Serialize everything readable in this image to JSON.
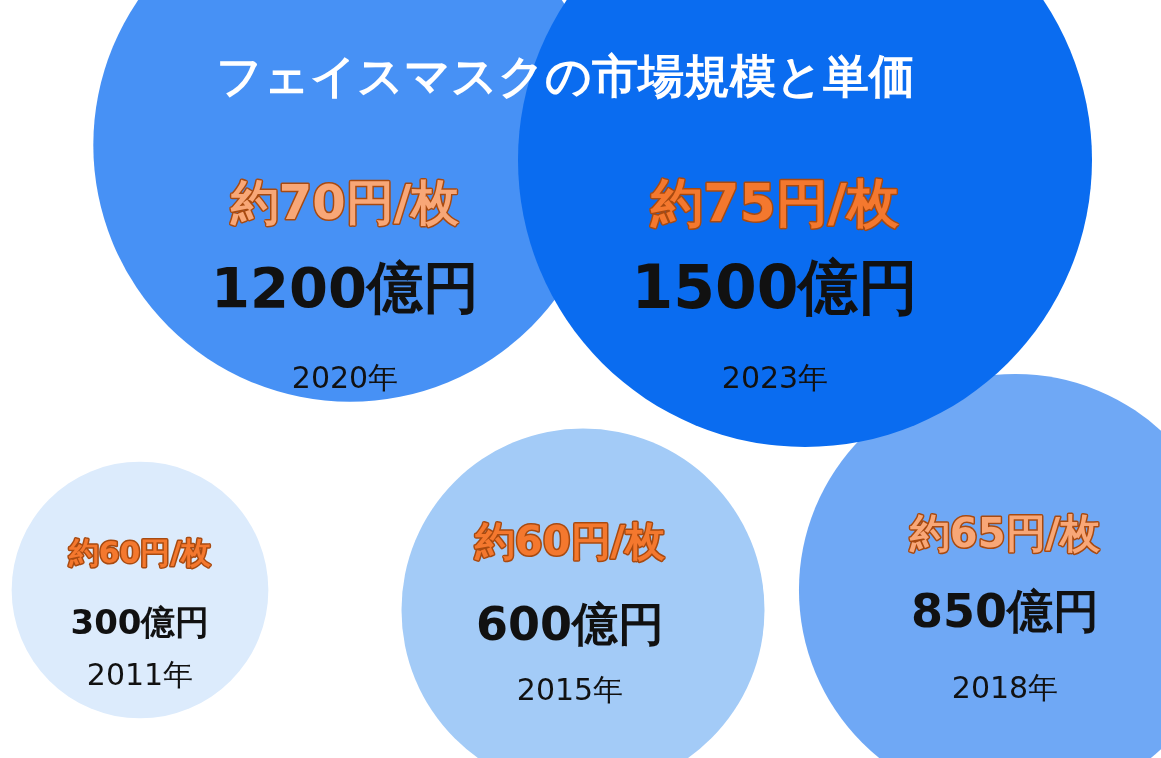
{
  "chart_data": {
    "type": "other",
    "title": "フェイスマスクの市場規模と単価",
    "categories": [
      "2011年",
      "2015年",
      "2018年",
      "2020年",
      "2023年"
    ],
    "series": [
      {
        "values": [
          300,
          600,
          850,
          1200,
          1500
        ],
        "value_labels": [
          "300億円",
          "600億円",
          "850億円",
          "1200億円",
          "1500億円"
        ],
        "color": "#111111",
        "colors": [
          "#dcebfc",
          "#a3cbf7",
          "#6fa8f5",
          "#4791f5",
          "#0a6cf0"
        ]
      },
      {
        "values": [
          60,
          60,
          65,
          70,
          75
        ],
        "value_labels": [
          "約60円/枚",
          "約60円/枚",
          "約65円/枚",
          "約70円/枚",
          "約75円/枚"
        ],
        "color": "#f4782e"
      }
    ]
  }
}
